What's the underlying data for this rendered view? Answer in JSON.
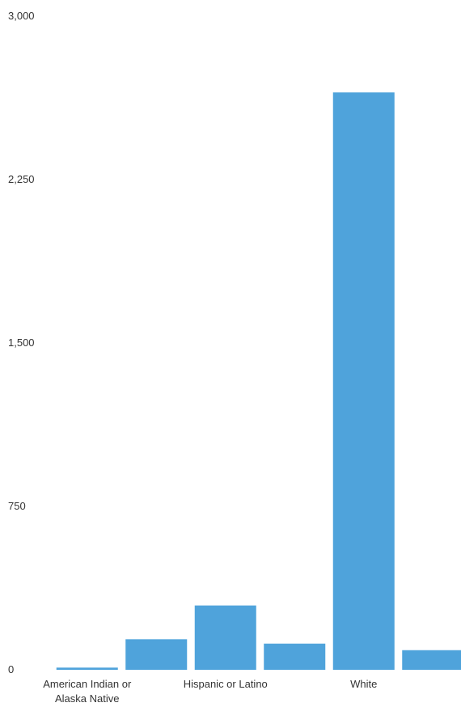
{
  "chart_data": {
    "type": "bar",
    "title": "",
    "xlabel": "",
    "ylabel": "",
    "ylim": [
      0,
      3000
    ],
    "yticks": [
      {
        "value": 0,
        "label": "0"
      },
      {
        "value": 750,
        "label": "750"
      },
      {
        "value": 1500,
        "label": "1,500"
      },
      {
        "value": 2250,
        "label": "2,250"
      },
      {
        "value": 3000,
        "label": "3,000"
      }
    ],
    "grid": false,
    "legend": "none",
    "bar_color": "#4fa3db",
    "categories": [
      {
        "key": "american-indian-alaska-native",
        "label_lines": [
          "American Indian or",
          "Alaska Native"
        ],
        "value": 10
      },
      {
        "key": "asian",
        "label_lines": [],
        "value": 140
      },
      {
        "key": "hispanic-or-latino",
        "label_lines": [
          "Hispanic or Latino"
        ],
        "value": 295
      },
      {
        "key": "multiracial",
        "label_lines": [],
        "value": 120
      },
      {
        "key": "white",
        "label_lines": [
          "White"
        ],
        "value": 2650
      },
      {
        "key": "other",
        "label_lines": [],
        "value": 90
      }
    ]
  }
}
